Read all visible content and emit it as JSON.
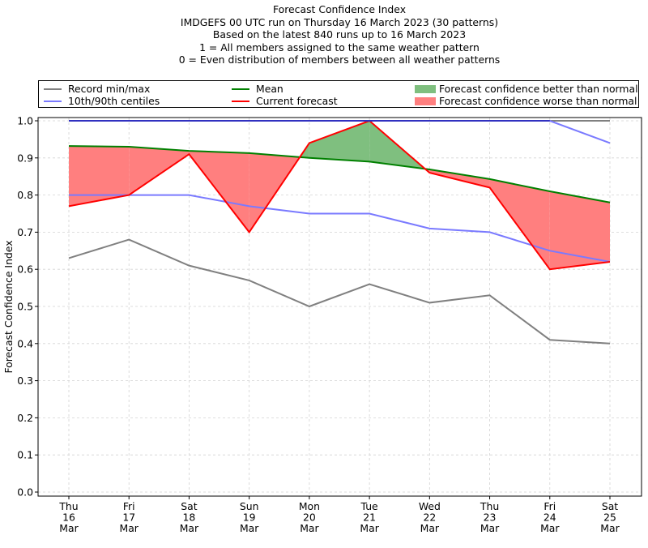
{
  "chart_data": {
    "type": "line",
    "title": "Forecast Confidence Index",
    "subtitle_lines": [
      "IMDGEFS 00 UTC run on Thursday 16 March 2023 (30 patterns)",
      "Based on the latest 840 runs up to 16 March 2023",
      "1 = All members assigned to the same weather pattern",
      "0 = Even distribution of members between all weather patterns"
    ],
    "xlabel": "",
    "ylabel": "Forecast Confidence Index",
    "ylim": [
      0.0,
      1.0
    ],
    "yticks": [
      "0.0",
      "0.1",
      "0.2",
      "0.3",
      "0.4",
      "0.5",
      "0.6",
      "0.7",
      "0.8",
      "0.9",
      "1.0"
    ],
    "categories": [
      [
        "Thu",
        "16",
        "Mar"
      ],
      [
        "Fri",
        "17",
        "Mar"
      ],
      [
        "Sat",
        "18",
        "Mar"
      ],
      [
        "Sun",
        "19",
        "Mar"
      ],
      [
        "Mon",
        "20",
        "Mar"
      ],
      [
        "Tue",
        "21",
        "Mar"
      ],
      [
        "Wed",
        "22",
        "Mar"
      ],
      [
        "Thu",
        "23",
        "Mar"
      ],
      [
        "Fri",
        "24",
        "Mar"
      ],
      [
        "Sat",
        "25",
        "Mar"
      ]
    ],
    "grid": true,
    "legend_position": "top (above plot, 3 columns)",
    "series": [
      {
        "name": "Record min/max",
        "role": "record_max",
        "color": "#808080",
        "values": [
          1.0,
          1.0,
          1.0,
          1.0,
          1.0,
          1.0,
          1.0,
          1.0,
          1.0,
          1.0
        ]
      },
      {
        "name": "Record min/max",
        "role": "record_min",
        "color": "#808080",
        "values": [
          0.63,
          0.68,
          0.61,
          0.57,
          0.5,
          0.56,
          0.51,
          0.53,
          0.41,
          0.4
        ]
      },
      {
        "name": "10th/90th centiles",
        "role": "p90",
        "color": "#7a7aff",
        "values": [
          1.0,
          1.0,
          1.0,
          1.0,
          1.0,
          1.0,
          1.0,
          1.0,
          1.0,
          0.94
        ]
      },
      {
        "name": "10th/90th centiles",
        "role": "p10",
        "color": "#7a7aff",
        "values": [
          0.8,
          0.8,
          0.8,
          0.77,
          0.75,
          0.75,
          0.71,
          0.7,
          0.65,
          0.62
        ]
      },
      {
        "name": "Mean",
        "role": "mean",
        "color": "#008000",
        "values": [
          0.932,
          0.93,
          0.919,
          0.913,
          0.9,
          0.89,
          0.869,
          0.843,
          0.81,
          0.78
        ]
      },
      {
        "name": "Current forecast",
        "role": "current",
        "color": "#ff0000",
        "values": [
          0.77,
          0.8,
          0.91,
          0.7,
          0.94,
          1.0,
          0.86,
          0.82,
          0.6,
          0.62
        ]
      }
    ],
    "fills": [
      {
        "name": "Forecast confidence better than normal",
        "color": "#7fbf7f",
        "between": [
          "current",
          "mean"
        ],
        "where": "current > mean"
      },
      {
        "name": "Forecast confidence worse than normal",
        "color": "#ff7f7f",
        "between": [
          "current",
          "mean"
        ],
        "where": "current < mean"
      }
    ]
  },
  "legend": {
    "items": [
      {
        "label": "Record min/max",
        "kind": "line",
        "color": "#808080"
      },
      {
        "label": "10th/90th centiles",
        "kind": "line",
        "color": "#7a7aff"
      },
      {
        "label": "Mean",
        "kind": "line",
        "color": "#008000"
      },
      {
        "label": "Current forecast",
        "kind": "line",
        "color": "#ff0000"
      },
      {
        "label": "Forecast confidence better than normal",
        "kind": "patch",
        "color": "#7fbf7f"
      },
      {
        "label": "Forecast confidence worse than normal",
        "kind": "patch",
        "color": "#ff7f7f"
      }
    ]
  }
}
